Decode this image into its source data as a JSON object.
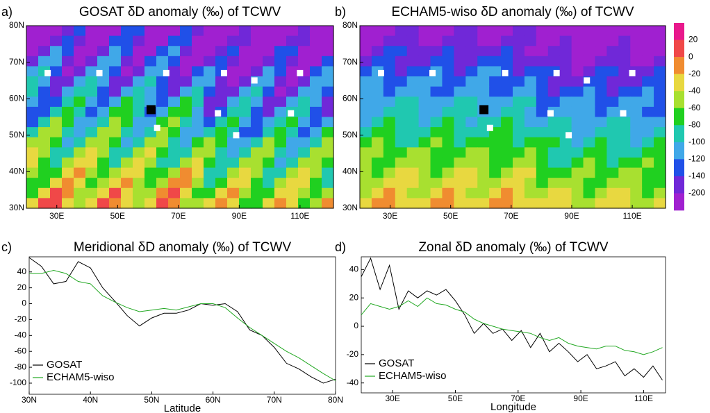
{
  "chart_data": [
    {
      "type": "map",
      "panel": "a)",
      "title": "GOSAT δD anomaly (‰) of TCWV",
      "xlim": [
        20,
        121
      ],
      "ylim": [
        30,
        80
      ],
      "xticks": [
        {
          "value": 30,
          "label": "30E"
        },
        {
          "value": 50,
          "label": "50E"
        },
        {
          "value": 70,
          "label": "70E"
        },
        {
          "value": 90,
          "label": "90E"
        },
        {
          "value": 110,
          "label": "110E"
        }
      ],
      "yticks": [
        {
          "value": 30,
          "label": "30N"
        },
        {
          "value": 40,
          "label": "40N"
        },
        {
          "value": 50,
          "label": "50N"
        },
        {
          "value": 60,
          "label": "60N"
        },
        {
          "value": 70,
          "label": "70N"
        },
        {
          "value": 80,
          "label": "80N"
        }
      ],
      "sites": {
        "lon": [
          27,
          44,
          66,
          85,
          95,
          83,
          110,
          107,
          89,
          63
        ],
        "lat": [
          67,
          67,
          67,
          67,
          65,
          56,
          67,
          56,
          50,
          52
        ]
      },
      "ref_site": {
        "lon": 61,
        "lat": 57
      }
    },
    {
      "type": "map",
      "panel": "b)",
      "title": "ECHAM5-wiso δD anomaly (‰) of TCWV",
      "xlim": [
        20,
        121
      ],
      "ylim": [
        30,
        80
      ],
      "xticks": [
        {
          "value": 30,
          "label": "30E"
        },
        {
          "value": 50,
          "label": "50E"
        },
        {
          "value": 70,
          "label": "70E"
        },
        {
          "value": 90,
          "label": "90E"
        },
        {
          "value": 110,
          "label": "110E"
        }
      ],
      "yticks": [
        {
          "value": 30,
          "label": "30N"
        },
        {
          "value": 40,
          "label": "40N"
        },
        {
          "value": 50,
          "label": "50N"
        },
        {
          "value": 60,
          "label": "60N"
        },
        {
          "value": 70,
          "label": "70N"
        },
        {
          "value": 80,
          "label": "80N"
        }
      ],
      "sites": {
        "lon": [
          27,
          44,
          68,
          85,
          95,
          83,
          110,
          107,
          89,
          63
        ],
        "lat": [
          67,
          67,
          67,
          67,
          65,
          56,
          67,
          56,
          50,
          52
        ]
      },
      "ref_site": {
        "lon": 61,
        "lat": 57
      }
    },
    {
      "type": "colorbar",
      "levels": [
        20,
        0,
        -20,
        -40,
        -60,
        -80,
        -100,
        -120,
        -140,
        -200
      ],
      "colors": [
        "#e8188c",
        "#f04848",
        "#f08c30",
        "#e8d840",
        "#a8e030",
        "#20d020",
        "#20c8b0",
        "#40a8e8",
        "#2050e8",
        "#7028d8",
        "#a020d0"
      ]
    },
    {
      "type": "line",
      "panel": "c)",
      "title": "Meridional δD anomaly (‰) of TCWV",
      "x_label": "Latitude",
      "x": [
        30,
        32,
        34,
        36,
        38,
        40,
        42,
        44,
        46,
        48,
        50,
        52,
        54,
        56,
        58,
        60,
        62,
        64,
        66,
        68,
        70,
        72,
        74,
        76,
        78,
        80
      ],
      "series": [
        {
          "name": "GOSAT",
          "color": "#000000",
          "values": [
            58,
            47,
            25,
            28,
            53,
            45,
            20,
            3,
            -15,
            -28,
            -18,
            -12,
            -12,
            -8,
            0,
            -2,
            0,
            -10,
            -33,
            -40,
            -55,
            -75,
            -82,
            -92,
            -100,
            -95
          ]
        },
        {
          "name": "ECHAM5-wiso",
          "color": "#22a822",
          "values": [
            38,
            38,
            42,
            38,
            28,
            25,
            10,
            2,
            -5,
            -10,
            -8,
            -6,
            -8,
            -4,
            0,
            0,
            -5,
            -18,
            -30,
            -40,
            -50,
            -60,
            -68,
            -78,
            -88,
            -97
          ]
        }
      ],
      "xlim": [
        30,
        80
      ],
      "ylim": [
        -114,
        59
      ],
      "xticks": [
        {
          "value": 30,
          "label": "30N"
        },
        {
          "value": 40,
          "label": "40N"
        },
        {
          "value": 50,
          "label": "50N"
        },
        {
          "value": 60,
          "label": "60N"
        },
        {
          "value": 70,
          "label": "70N"
        },
        {
          "value": 80,
          "label": "80N"
        }
      ],
      "yticks": [
        -100,
        -80,
        -60,
        -40,
        -20,
        0,
        20,
        40
      ]
    },
    {
      "type": "line",
      "panel": "d)",
      "title": "Zonal δD anomaly (‰) of TCWV",
      "x_label": "Longitude",
      "x": [
        20,
        23,
        26,
        29,
        32,
        35,
        38,
        41,
        44,
        47,
        50,
        53,
        56,
        59,
        62,
        65,
        68,
        71,
        74,
        77,
        80,
        83,
        86,
        89,
        92,
        95,
        98,
        101,
        104,
        107,
        110,
        113,
        116
      ],
      "series": [
        {
          "name": "GOSAT",
          "color": "#000000",
          "values": [
            35,
            48,
            26,
            43,
            12,
            25,
            20,
            25,
            22,
            26,
            18,
            8,
            -5,
            2,
            -5,
            -2,
            -10,
            -3,
            -15,
            -5,
            -18,
            -12,
            -18,
            -25,
            -20,
            -30,
            -28,
            -25,
            -35,
            -30,
            -36,
            -28,
            -38
          ]
        },
        {
          "name": "ECHAM5-wiso",
          "color": "#22a822",
          "values": [
            8,
            16,
            14,
            12,
            14,
            18,
            14,
            20,
            16,
            15,
            12,
            10,
            5,
            2,
            0,
            -2,
            -3,
            -4,
            -5,
            -8,
            -10,
            -8,
            -12,
            -14,
            -15,
            -16,
            -14,
            -14,
            -17,
            -18,
            -20,
            -18,
            -15
          ]
        }
      ],
      "xlim": [
        20,
        117
      ],
      "ylim": [
        -47,
        49
      ],
      "xticks": [
        {
          "value": 30,
          "label": "30E"
        },
        {
          "value": 50,
          "label": "50E"
        },
        {
          "value": 70,
          "label": "70E"
        },
        {
          "value": 90,
          "label": "90E"
        },
        {
          "value": 110,
          "label": "110E"
        }
      ],
      "yticks": [
        -40,
        -20,
        0,
        20,
        40
      ]
    }
  ]
}
